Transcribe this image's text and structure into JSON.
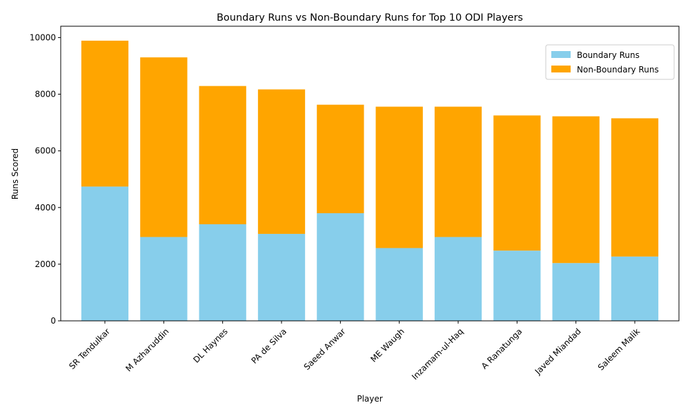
{
  "chart_data": {
    "type": "bar",
    "stacked": true,
    "title": "Boundary Runs vs Non-Boundary Runs for Top 10 ODI Players",
    "xlabel": "Player",
    "ylabel": "Runs Scored",
    "categories": [
      "SR Tendulkar",
      "M Azharuddin",
      "DL Haynes",
      "PA de Silva",
      "Saeed Anwar",
      "ME Waugh",
      "Inzamam-ul-Haq",
      "A Ranatunga",
      "Javed Miandad",
      "Saleem Malik"
    ],
    "ylim": [
      0,
      10400
    ],
    "yticks": [
      0,
      2000,
      4000,
      6000,
      8000,
      10000
    ],
    "grid": false,
    "legend_position": "top-right",
    "series": [
      {
        "name": "Boundary Runs",
        "color": "#87CEEB",
        "values": [
          4740,
          2960,
          3410,
          3070,
          3800,
          2570,
          2960,
          2480,
          2040,
          2270
        ]
      },
      {
        "name": "Non-Boundary Runs",
        "color": "#FFA500",
        "values": [
          5150,
          6340,
          4880,
          5100,
          3830,
          4990,
          4600,
          4770,
          5180,
          4880
        ]
      }
    ]
  }
}
